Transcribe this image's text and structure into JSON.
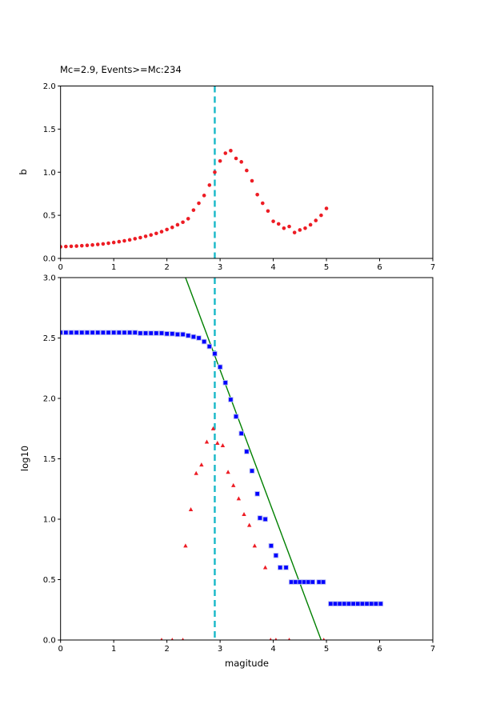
{
  "colors": {
    "red": "#ed1c24",
    "blue": "#0000ff",
    "blue_edge": "#b8bcf2",
    "green": "#008000",
    "cyan": "#17b8c7",
    "axis": "#000000"
  },
  "chart_data": [
    {
      "type": "scatter",
      "title": "Mc=2.9, Events>=Mc:234",
      "xlabel": "",
      "ylabel": "b",
      "xlim": [
        0,
        7
      ],
      "ylim": [
        0,
        2
      ],
      "xtick_values": [
        0,
        1,
        2,
        3,
        4,
        5,
        6,
        7
      ],
      "xtick_labels": [
        "0",
        "1",
        "2",
        "3",
        "4",
        "5",
        "6",
        "7"
      ],
      "ytick_values": [
        0,
        0.5,
        1,
        1.5,
        2
      ],
      "ytick_labels": [
        "0.0",
        "0.5",
        "1.0",
        "1.5",
        "2.0"
      ],
      "grid": false,
      "vline_x": 2.9,
      "series": [
        {
          "name": "b-value-vs-cutoff-magnitude",
          "marker": "circle",
          "color": "red",
          "points": [
            [
              0.0,
              0.135
            ],
            [
              0.1,
              0.138
            ],
            [
              0.2,
              0.14
            ],
            [
              0.3,
              0.143
            ],
            [
              0.4,
              0.147
            ],
            [
              0.5,
              0.151
            ],
            [
              0.6,
              0.156
            ],
            [
              0.7,
              0.162
            ],
            [
              0.8,
              0.168
            ],
            [
              0.9,
              0.176
            ],
            [
              1.0,
              0.185
            ],
            [
              1.1,
              0.194
            ],
            [
              1.2,
              0.204
            ],
            [
              1.3,
              0.215
            ],
            [
              1.4,
              0.228
            ],
            [
              1.5,
              0.241
            ],
            [
              1.6,
              0.256
            ],
            [
              1.7,
              0.272
            ],
            [
              1.8,
              0.29
            ],
            [
              1.9,
              0.31
            ],
            [
              2.0,
              0.335
            ],
            [
              2.1,
              0.36
            ],
            [
              2.2,
              0.39
            ],
            [
              2.3,
              0.42
            ],
            [
              2.4,
              0.46
            ],
            [
              2.5,
              0.56
            ],
            [
              2.6,
              0.64
            ],
            [
              2.7,
              0.73
            ],
            [
              2.8,
              0.85
            ],
            [
              2.9,
              1.0
            ],
            [
              3.0,
              1.13
            ],
            [
              3.1,
              1.22
            ],
            [
              3.2,
              1.25
            ],
            [
              3.3,
              1.16
            ],
            [
              3.4,
              1.12
            ],
            [
              3.5,
              1.02
            ],
            [
              3.6,
              0.9
            ],
            [
              3.7,
              0.74
            ],
            [
              3.8,
              0.64
            ],
            [
              3.9,
              0.55
            ],
            [
              4.0,
              0.43
            ],
            [
              4.1,
              0.4
            ],
            [
              4.2,
              0.35
            ],
            [
              4.3,
              0.37
            ],
            [
              4.4,
              0.3
            ],
            [
              4.5,
              0.33
            ],
            [
              4.6,
              0.35
            ],
            [
              4.7,
              0.39
            ],
            [
              4.8,
              0.44
            ],
            [
              4.9,
              0.5
            ],
            [
              5.0,
              0.58
            ]
          ]
        }
      ]
    },
    {
      "type": "scatter",
      "title": "",
      "xlabel": "magitude",
      "ylabel": "log10",
      "xlim": [
        0,
        7
      ],
      "ylim": [
        0,
        3
      ],
      "xtick_values": [
        0,
        1,
        2,
        3,
        4,
        5,
        6,
        7
      ],
      "xtick_labels": [
        "0",
        "1",
        "2",
        "3",
        "4",
        "5",
        "6",
        "7"
      ],
      "ytick_values": [
        0,
        0.5,
        1,
        1.5,
        2,
        2.5,
        3
      ],
      "ytick_labels": [
        "0.0",
        "0.5",
        "1.0",
        "1.5",
        "2.0",
        "2.5",
        "3.0"
      ],
      "grid": false,
      "vline_x": 2.9,
      "fit_line": {
        "name": "gutenberg-richter-fit-line",
        "color": "green",
        "points": [
          [
            2.35,
            3.0
          ],
          [
            4.9,
            0.0
          ]
        ]
      },
      "series": [
        {
          "name": "cumulative-event-counts",
          "marker": "square",
          "color": "blue",
          "points": [
            [
              0.0,
              2.545
            ],
            [
              0.1,
              2.545
            ],
            [
              0.2,
              2.545
            ],
            [
              0.3,
              2.545
            ],
            [
              0.4,
              2.545
            ],
            [
              0.5,
              2.545
            ],
            [
              0.6,
              2.545
            ],
            [
              0.7,
              2.545
            ],
            [
              0.8,
              2.545
            ],
            [
              0.9,
              2.545
            ],
            [
              1.0,
              2.545
            ],
            [
              1.1,
              2.545
            ],
            [
              1.2,
              2.545
            ],
            [
              1.3,
              2.545
            ],
            [
              1.4,
              2.545
            ],
            [
              1.5,
              2.54
            ],
            [
              1.6,
              2.54
            ],
            [
              1.7,
              2.54
            ],
            [
              1.8,
              2.54
            ],
            [
              1.9,
              2.54
            ],
            [
              2.0,
              2.535
            ],
            [
              2.1,
              2.535
            ],
            [
              2.2,
              2.53
            ],
            [
              2.3,
              2.53
            ],
            [
              2.4,
              2.52
            ],
            [
              2.5,
              2.51
            ],
            [
              2.6,
              2.5
            ],
            [
              2.7,
              2.47
            ],
            [
              2.8,
              2.43
            ],
            [
              2.9,
              2.37
            ],
            [
              3.0,
              2.26
            ],
            [
              3.1,
              2.13
            ],
            [
              3.2,
              1.99
            ],
            [
              3.3,
              1.85
            ],
            [
              3.4,
              1.71
            ],
            [
              3.5,
              1.56
            ],
            [
              3.6,
              1.4
            ],
            [
              3.7,
              1.21
            ],
            [
              3.75,
              1.01
            ],
            [
              3.85,
              1.0
            ],
            [
              3.96,
              0.78
            ],
            [
              4.05,
              0.7
            ],
            [
              4.13,
              0.6
            ],
            [
              4.24,
              0.6
            ],
            [
              4.34,
              0.48
            ],
            [
              4.42,
              0.48
            ],
            [
              4.5,
              0.48
            ],
            [
              4.58,
              0.48
            ],
            [
              4.66,
              0.48
            ],
            [
              4.74,
              0.48
            ],
            [
              4.86,
              0.48
            ],
            [
              4.94,
              0.48
            ],
            [
              5.08,
              0.3
            ],
            [
              5.165,
              0.3
            ],
            [
              5.25,
              0.3
            ],
            [
              5.335,
              0.3
            ],
            [
              5.42,
              0.3
            ],
            [
              5.505,
              0.3
            ],
            [
              5.59,
              0.3
            ],
            [
              5.675,
              0.3
            ],
            [
              5.76,
              0.3
            ],
            [
              5.845,
              0.3
            ],
            [
              5.93,
              0.3
            ],
            [
              6.02,
              0.3
            ]
          ]
        },
        {
          "name": "binned-event-counts",
          "marker": "triangle",
          "color": "red",
          "points": [
            [
              1.9,
              0.0
            ],
            [
              2.1,
              0.0
            ],
            [
              2.3,
              0.0
            ],
            [
              2.35,
              0.78
            ],
            [
              2.45,
              1.08
            ],
            [
              2.55,
              1.38
            ],
            [
              2.65,
              1.45
            ],
            [
              2.75,
              1.64
            ],
            [
              2.87,
              1.75
            ],
            [
              2.95,
              1.63
            ],
            [
              3.05,
              1.61
            ],
            [
              3.15,
              1.39
            ],
            [
              3.25,
              1.28
            ],
            [
              3.35,
              1.17
            ],
            [
              3.45,
              1.04
            ],
            [
              3.55,
              0.95
            ],
            [
              3.65,
              0.78
            ],
            [
              3.85,
              0.6
            ],
            [
              3.95,
              0.0
            ],
            [
              4.05,
              0.0
            ],
            [
              4.3,
              0.0
            ],
            [
              4.95,
              0.0
            ]
          ]
        }
      ]
    }
  ]
}
